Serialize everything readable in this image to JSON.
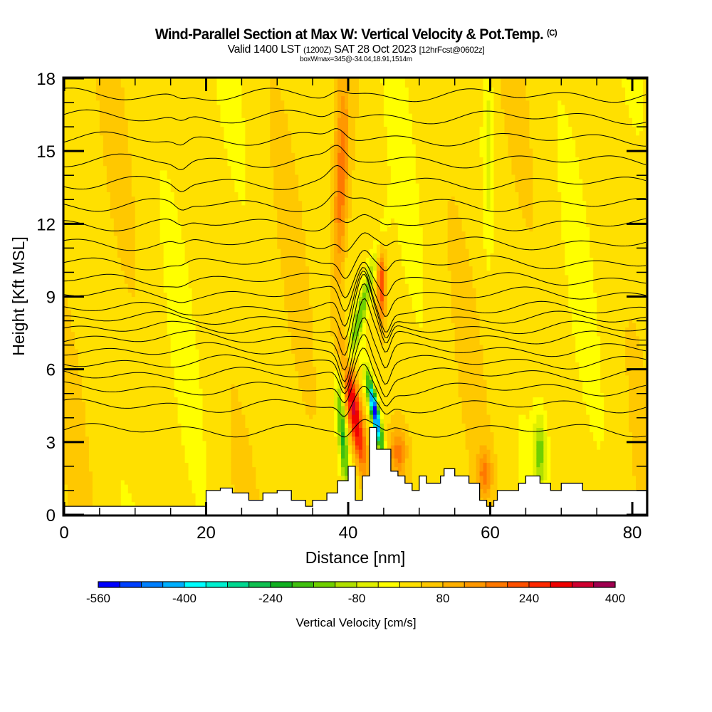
{
  "header": {
    "title": "Wind-Parallel Section at Max W: Vertical Velocity & Pot.Temp.",
    "copyright": "(C)",
    "subtitle_main": "Valid 1400 LST",
    "subtitle_utc": "(1200Z)",
    "subtitle_date": "SAT 28 Oct 2023",
    "subtitle_fcst": "[12hrFcst@0602z]",
    "subtitle_box": "boxWmax=345@-34.04,18.91,1514m"
  },
  "chart_data": {
    "type": "heatmap",
    "title": "Wind-Parallel Section at Max W: Vertical Velocity & Pot.Temp.",
    "xlabel": "Distance [nm]",
    "ylabel": "Height [Kft MSL]",
    "xlim": [
      0,
      82
    ],
    "ylim": [
      0,
      18
    ],
    "x_ticks": [
      {
        "value": 0,
        "label": "0"
      },
      {
        "value": 20,
        "label": "20"
      },
      {
        "value": 40,
        "label": "40"
      },
      {
        "value": 60,
        "label": "60"
      },
      {
        "value": 80,
        "label": "80"
      }
    ],
    "x_minor_step": 5,
    "y_ticks": [
      {
        "value": 0,
        "label": "0"
      },
      {
        "value": 3,
        "label": "3"
      },
      {
        "value": 6,
        "label": "6"
      },
      {
        "value": 9,
        "label": "9"
      },
      {
        "value": 12,
        "label": "12"
      },
      {
        "value": 15,
        "label": "15"
      },
      {
        "value": 18,
        "label": "18"
      }
    ],
    "y_minor_step": 1,
    "colorbar": {
      "title": "Vertical Velocity [cm/s]",
      "min": -560,
      "max": 400,
      "step": 40,
      "tick_labels": [
        "-560",
        "-400",
        "-240",
        "-80",
        "80",
        "240",
        "400"
      ],
      "tick_values": [
        -560,
        -400,
        -240,
        -80,
        80,
        240,
        400
      ],
      "colors": [
        "#0000ff",
        "#0040ff",
        "#0080ff",
        "#00b0ff",
        "#00ffff",
        "#00f0d0",
        "#00d890",
        "#10c050",
        "#10b020",
        "#40c010",
        "#70d000",
        "#b0e000",
        "#e0f000",
        "#ffff00",
        "#ffe000",
        "#ffc800",
        "#ffb000",
        "#ff9800",
        "#ff7800",
        "#ff5000",
        "#ff2800",
        "#f00000",
        "#d00030",
        "#a00050"
      ]
    },
    "field_features": [
      {
        "name": "updraft-core",
        "x_nm": 41,
        "z_kft": 4,
        "w_cms": 345
      },
      {
        "name": "downdraft-core",
        "x_nm": 43.5,
        "z_kft": 4.5,
        "w_cms": -500
      },
      {
        "name": "upper-updraft-band",
        "x_nm": 39,
        "z_kft": 14,
        "w_cms": 160
      },
      {
        "name": "secondary-updraft",
        "x_nm": 44.5,
        "z_kft": 10,
        "w_cms": 200
      }
    ],
    "terrain_kft": {
      "x_nm": [
        0,
        20,
        20,
        22,
        22,
        23.7,
        23.7,
        26,
        26,
        28,
        28,
        30,
        30,
        32,
        32,
        34,
        34,
        35,
        35,
        37,
        37,
        38.5,
        38.5,
        40,
        40,
        41,
        41,
        42,
        42,
        43,
        43,
        44,
        44,
        46,
        46,
        47,
        47,
        48,
        48,
        49,
        49,
        50,
        50,
        51,
        51,
        53,
        53,
        53.5,
        53.5,
        55,
        55,
        57,
        57,
        58.5,
        58.5,
        59.5,
        59.5,
        60.5,
        60.5,
        61,
        61,
        64,
        64,
        65,
        65,
        67,
        67,
        68.5,
        68.5,
        70,
        70,
        73,
        73,
        76,
        76,
        82
      ],
      "z": [
        0.35,
        0.35,
        1,
        1,
        1.1,
        1.1,
        0.9,
        0.9,
        0.6,
        0.6,
        0.9,
        0.9,
        1,
        1,
        0.6,
        0.6,
        0.35,
        0.35,
        0.6,
        0.6,
        0.9,
        0.9,
        1.4,
        1.4,
        2,
        2,
        0.6,
        0.6,
        1.6,
        1.6,
        3.6,
        3.6,
        2.7,
        2.7,
        1.8,
        1.8,
        1.6,
        1.6,
        1.3,
        1.3,
        1,
        1,
        1.6,
        1.6,
        1.3,
        1.3,
        1.6,
        1.6,
        1.9,
        1.9,
        1.6,
        1.6,
        1.3,
        1.3,
        0.6,
        0.6,
        0.35,
        0.35,
        0.6,
        0.6,
        1,
        1,
        1.3,
        1.3,
        1.6,
        1.6,
        1.3,
        1.3,
        1,
        1,
        1.3,
        1.3,
        1,
        1,
        1,
        1
      ]
    },
    "theta_contours": {
      "description": "Potential temperature isentropes",
      "base_heights_kft": [
        3.5,
        4.5,
        5.2,
        5.8,
        6.3,
        6.8,
        7.3,
        7.7,
        8.1,
        8.5,
        9.1,
        9.7,
        10.4,
        11.2,
        12.0,
        12.8,
        13.7,
        14.6,
        15.5,
        16.4,
        17.3
      ]
    }
  }
}
